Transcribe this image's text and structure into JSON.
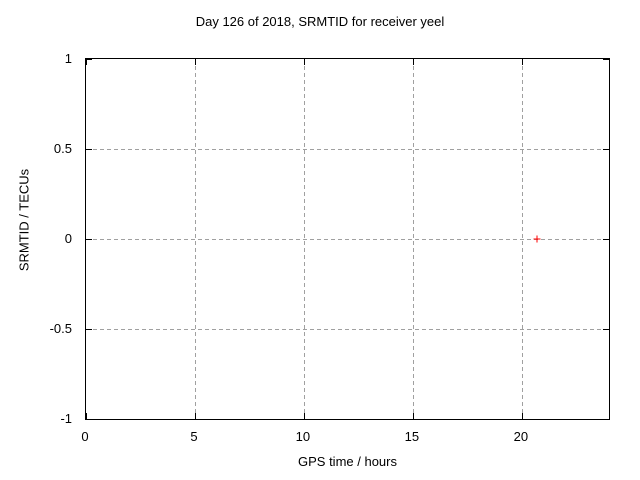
{
  "chart_data": {
    "type": "scatter",
    "title": "Day 126 of 2018, SRMTID for receiver yeel",
    "xlabel": "GPS time / hours",
    "ylabel": "SRMTID / TECUs",
    "xlim": [
      0,
      24
    ],
    "ylim": [
      -1,
      1
    ],
    "grid": true,
    "legend": "none",
    "xticks": [
      {
        "value": 0,
        "label": "0"
      },
      {
        "value": 5,
        "label": "5"
      },
      {
        "value": 10,
        "label": "10"
      },
      {
        "value": 15,
        "label": "15"
      },
      {
        "value": 20,
        "label": "20"
      }
    ],
    "yticks": [
      {
        "value": -1,
        "label": "-1"
      },
      {
        "value": -0.5,
        "label": "-0.5"
      },
      {
        "value": 0,
        "label": "0"
      },
      {
        "value": 0.5,
        "label": "0.5"
      },
      {
        "value": 1,
        "label": "1"
      }
    ],
    "colors": {
      "background": "#ffffff",
      "frame": "#000000",
      "grid": "#a0a0a0",
      "text": "#000000"
    },
    "series": [
      {
        "name": "SRMTID",
        "marker": "plus",
        "color": "#ff0000",
        "points": [
          {
            "x": 20.7,
            "y": 0.0
          }
        ]
      }
    ]
  }
}
